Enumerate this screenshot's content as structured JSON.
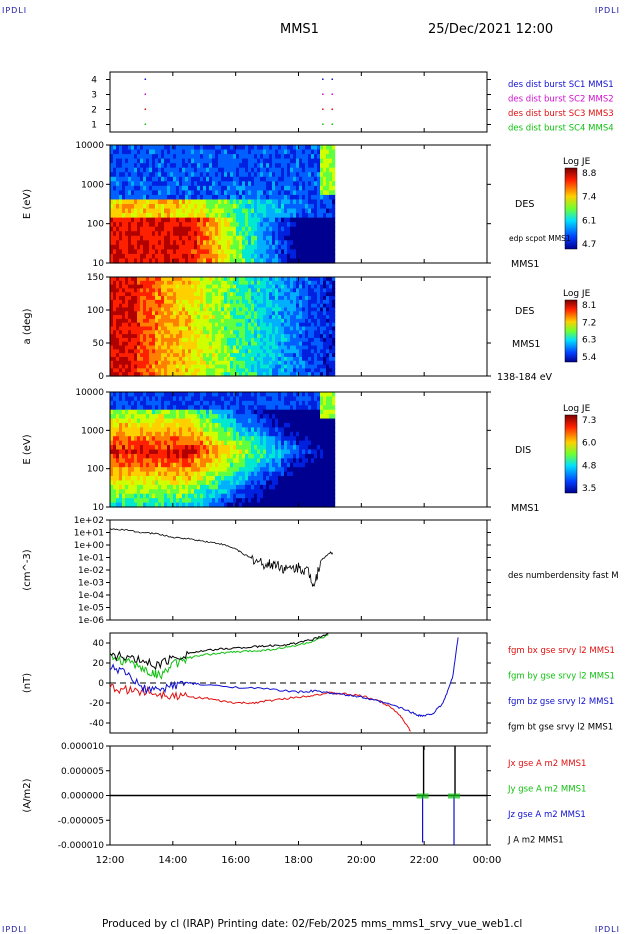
{
  "header": {
    "corner_label": "IPDLI",
    "mission": "MMS1",
    "datetime": "25/Dec/2021 12:00"
  },
  "footer": {
    "credit": "Produced by cl (IRAP)   Printing date: 02/Feb/2025   mms_mms1_srvy_vue_web1.cl"
  },
  "colors": {
    "blue": "#1010d0",
    "magenta": "#d010d0",
    "red": "#e01010",
    "green": "#10c010",
    "black": "#000000"
  },
  "chart_data": [
    {
      "type": "scatter",
      "id": "burst",
      "ylabel": "",
      "yticks": [
        "1",
        "2",
        "3",
        "4"
      ],
      "ylim": [
        0.5,
        4.5
      ],
      "legend": [
        {
          "label": "des dist burst SC1 MMS1",
          "color": "#1010d0"
        },
        {
          "label": "des dist burst SC2 MMS2",
          "color": "#d010d0"
        },
        {
          "label": "des dist burst SC3 MMS3",
          "color": "#e01010"
        },
        {
          "label": "des dist burst SC4 MMS4",
          "color": "#10c010"
        }
      ],
      "points_hours": [
        {
          "spacecraft": 4,
          "x": [
            13.1,
            18.75,
            19.05
          ]
        },
        {
          "spacecraft": 3,
          "x": [
            13.1,
            18.75,
            19.05
          ]
        },
        {
          "spacecraft": 2,
          "x": [
            13.1,
            18.75,
            19.05
          ]
        },
        {
          "spacecraft": 1,
          "x": [
            13.1,
            18.75,
            19.05
          ]
        }
      ]
    },
    {
      "type": "heatmap",
      "id": "des-energy",
      "ylabel": "E (eV)",
      "yticks": [
        "10",
        "100",
        "1000",
        "10000"
      ],
      "side_labels": [
        "DES",
        "edp scpot MMS1",
        "MMS1"
      ],
      "colorbar": {
        "title": "Log JE",
        "ticks": [
          "8.8",
          "7.4",
          "6.1",
          "4.7"
        ]
      },
      "data_end_hour": 19.1
    },
    {
      "type": "heatmap",
      "id": "des-pitch",
      "ylabel": "a (deg)",
      "yticks": [
        "0",
        "50",
        "100",
        "150"
      ],
      "side_labels": [
        "DES",
        "MMS1",
        "138-184 eV"
      ],
      "colorbar": {
        "title": "Log JE",
        "ticks": [
          "8.1",
          "7.2",
          "6.3",
          "5.4"
        ]
      },
      "data_end_hour": 19.1
    },
    {
      "type": "heatmap",
      "id": "dis-energy",
      "ylabel": "E (eV)",
      "yticks": [
        "10",
        "100",
        "1000",
        "10000"
      ],
      "side_labels": [
        "DIS",
        "MMS1"
      ],
      "colorbar": {
        "title": "Log JE",
        "ticks": [
          "7.3",
          "6.0",
          "4.8",
          "3.5"
        ]
      },
      "data_end_hour": 19.1
    },
    {
      "type": "line",
      "id": "density",
      "ylabel": "(cm^-3)",
      "yticks": [
        "1e-06",
        "1e-05",
        "1e-04",
        "1e-03",
        "1e-02",
        "1e-01",
        "1e+00",
        "1e+01",
        "1e+02"
      ],
      "ylim_log10": [
        -6,
        2
      ],
      "legend": [
        {
          "label": "des numberdensity fast M",
          "color": "#000000"
        }
      ],
      "series": [
        {
          "x": [
            12.0,
            12.5,
            13.0,
            13.5,
            14.0,
            14.5,
            15.0,
            15.5,
            16.0,
            16.3,
            16.6,
            17.0,
            17.3,
            17.6,
            18.0,
            18.3,
            18.5,
            18.7,
            19.0,
            19.1
          ],
          "log10_y": [
            1.3,
            1.2,
            1.0,
            0.9,
            0.6,
            0.5,
            0.3,
            0.1,
            -0.3,
            -0.8,
            -1.2,
            -1.6,
            -1.5,
            -2.0,
            -1.8,
            -2.1,
            -3.2,
            -1.3,
            -0.6,
            -0.7
          ]
        }
      ]
    },
    {
      "type": "line",
      "id": "magnetic-field",
      "ylabel": "(nT)",
      "yticks": [
        "-40",
        "-20",
        "0",
        "20",
        "40"
      ],
      "ylim": [
        -50,
        50
      ],
      "legend": [
        {
          "label": "fgm bx gse srvy l2 MMS1",
          "color": "#e01010"
        },
        {
          "label": "fgm by gse srvy l2 MMS1",
          "color": "#10c010"
        },
        {
          "label": "fgm bz gse srvy l2 MMS1",
          "color": "#1010d0"
        },
        {
          "label": "fgm bt gse srvy l2 MMS1",
          "color": "#000000"
        }
      ],
      "series": [
        {
          "name": "bx",
          "x": [
            12.0,
            12.5,
            13.0,
            13.5,
            14.0,
            14.5,
            15.0,
            15.5,
            16.0,
            16.5,
            17.0,
            17.5,
            18.0,
            18.5,
            19.0,
            19.5,
            20.0,
            20.5,
            21.0,
            21.3,
            21.6
          ],
          "y": [
            -5,
            -7,
            -8,
            -10,
            -12,
            -14,
            -15,
            -18,
            -20,
            -20,
            -18,
            -16,
            -14,
            -12,
            -10,
            -11,
            -13,
            -17,
            -25,
            -35,
            -50
          ]
        },
        {
          "name": "by",
          "x": [
            12.0,
            12.5,
            13.0,
            13.3,
            13.6,
            14.0,
            14.5,
            15.0,
            15.5,
            16.0,
            16.5,
            17.0,
            17.5,
            18.0,
            18.5,
            19.0
          ],
          "y": [
            25,
            22,
            15,
            10,
            8,
            18,
            25,
            28,
            30,
            31,
            32,
            33,
            35,
            38,
            42,
            48
          ]
        },
        {
          "name": "bz",
          "x": [
            12.0,
            12.5,
            13.0,
            13.5,
            14.0,
            14.5,
            15.0,
            16.0,
            17.0,
            18.0,
            18.5,
            19.0,
            19.5,
            20.0,
            20.5,
            21.0,
            21.5,
            21.8,
            22.0,
            22.3,
            22.6,
            22.9,
            23.1
          ],
          "y": [
            15,
            10,
            -5,
            -8,
            -2,
            0,
            -2,
            -4,
            -6,
            -9,
            -8,
            -10,
            -12,
            -14,
            -18,
            -22,
            -28,
            -32,
            -33,
            -30,
            -20,
            5,
            50
          ]
        },
        {
          "name": "bt",
          "x": [
            12.0,
            12.5,
            13.0,
            13.5,
            14.0,
            14.5,
            15.0,
            15.5,
            16.0,
            16.5,
            17.0,
            17.5,
            18.0,
            18.5,
            19.0
          ],
          "y": [
            28,
            26,
            22,
            18,
            25,
            30,
            32,
            34,
            35,
            36,
            37,
            38,
            40,
            44,
            50
          ]
        }
      ]
    },
    {
      "type": "line",
      "id": "current-density",
      "ylabel": "(A/m2)",
      "yticks": [
        "-0.000010",
        "-0.000005",
        "0.000000",
        "0.000005",
        "0.000010"
      ],
      "ylim": [
        -1e-05,
        1e-05
      ],
      "legend": [
        {
          "label": "Jx gse A m2 MMS1",
          "color": "#e01010"
        },
        {
          "label": "Jy gse A m2 MMS1",
          "color": "#10c010"
        },
        {
          "label": "Jz gse A m2 MMS1",
          "color": "#1010d0"
        },
        {
          "label": "J A m2 MMS1",
          "color": "#000000"
        }
      ],
      "spikes": [
        {
          "x": 21.95,
          "j_total": 1e-05,
          "jz": -9.5e-06
        },
        {
          "x": 22.95,
          "j_total": 1e-05,
          "jz": -1e-05
        }
      ]
    }
  ],
  "time_axis": {
    "ticks": [
      "12:00",
      "14:00",
      "16:00",
      "18:00",
      "20:00",
      "22:00",
      "00:00"
    ],
    "start_hour": 12,
    "end_hour": 24
  }
}
